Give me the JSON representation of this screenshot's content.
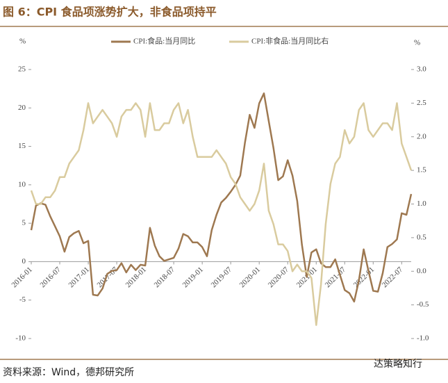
{
  "chart_data": {
    "type": "line",
    "title": "图 6：CPI 食品项涨势扩大，非食品项持平",
    "y_unit": "%",
    "y2_unit": "%",
    "source": "资料来源：Wind，德邦研究所",
    "watermark": "达策略知行",
    "grid": false,
    "legend": "top",
    "categories": [
      "2016-01",
      null,
      null,
      null,
      null,
      null,
      "2016-07",
      null,
      null,
      null,
      null,
      null,
      "2017-01",
      null,
      null,
      null,
      null,
      null,
      "2017-07",
      null,
      null,
      null,
      null,
      null,
      "2018-01",
      null,
      null,
      null,
      null,
      null,
      "2018-07",
      null,
      null,
      null,
      null,
      null,
      "2019-01",
      null,
      null,
      null,
      null,
      null,
      "2019-07",
      null,
      null,
      null,
      null,
      null,
      "2020-01",
      null,
      null,
      null,
      null,
      null,
      "2020-07",
      null,
      null,
      null,
      null,
      null,
      "2021-01",
      null,
      null,
      null,
      null,
      null,
      "2021-07",
      null,
      null,
      null,
      null,
      null,
      "2022-01",
      null,
      null,
      null,
      null,
      null,
      "2022-07",
      null,
      null
    ],
    "ylim": [
      -10,
      25
    ],
    "yticks": [
      -10,
      -5,
      0,
      5,
      10,
      15,
      20,
      25
    ],
    "y2lim": [
      -1,
      3
    ],
    "y2ticks": [
      {
        "value": -1,
        "label": "-1.0"
      },
      -0.5,
      {
        "value": 0,
        "label": "0.0"
      },
      0.5,
      {
        "value": 1,
        "label": "1.0"
      },
      1.5,
      {
        "value": 2,
        "label": "2.0"
      },
      2.5,
      {
        "value": 3,
        "label": "3.0"
      }
    ],
    "series": [
      {
        "name": "CPI:食品:当月同比",
        "color": "#9e7850",
        "values": [
          4.1,
          7.3,
          7.6,
          7.4,
          5.9,
          4.6,
          3.3,
          1.3,
          3.2,
          3.7,
          4.0,
          2.4,
          2.7,
          -4.3,
          -4.4,
          -3.5,
          -1.6,
          -1.2,
          -1.1,
          -0.2,
          -1.4,
          -0.4,
          -1.1,
          -0.4,
          -0.5,
          4.4,
          2.1,
          0.7,
          0.1,
          0.3,
          0.5,
          1.7,
          3.6,
          3.3,
          2.5,
          2.5,
          1.9,
          0.7,
          4.1,
          6.1,
          7.7,
          8.3,
          9.1,
          10.0,
          11.2,
          15.5,
          19.1,
          17.4,
          20.6,
          21.9,
          18.3,
          14.8,
          10.6,
          11.1,
          13.2,
          11.2,
          7.9,
          2.2,
          -2.0,
          1.2,
          1.6,
          -0.2,
          -0.7,
          -0.7,
          0.3,
          -1.7,
          -3.7,
          -4.1,
          -5.2,
          -2.4,
          1.6,
          -1.2,
          -3.8,
          -3.9,
          -1.5,
          1.9,
          2.3,
          2.9,
          6.3,
          6.1,
          8.8
        ]
      },
      {
        "name": "CPI:非食品:当月同比右",
        "color": "#d9cb9e",
        "axis": "y2",
        "values": [
          1.2,
          1.0,
          1.0,
          1.1,
          1.1,
          1.2,
          1.4,
          1.4,
          1.6,
          1.7,
          1.8,
          2.1,
          2.5,
          2.2,
          2.3,
          2.4,
          2.3,
          2.2,
          2.0,
          2.3,
          2.4,
          2.4,
          2.5,
          2.4,
          2.0,
          2.5,
          2.1,
          2.1,
          2.2,
          2.2,
          2.4,
          2.5,
          2.2,
          2.4,
          2.0,
          1.7,
          1.7,
          1.7,
          1.7,
          1.8,
          1.7,
          1.6,
          1.4,
          1.3,
          1.1,
          1.0,
          0.9,
          1.0,
          1.2,
          1.6,
          0.9,
          0.7,
          0.4,
          0.4,
          0.3,
          0.0,
          0.1,
          0.0,
          0.0,
          -0.1,
          -0.8,
          -0.2,
          0.7,
          1.3,
          1.6,
          1.7,
          2.1,
          1.9,
          2.0,
          2.4,
          2.5,
          2.1,
          2.0,
          2.1,
          2.2,
          2.2,
          2.1,
          2.5,
          1.9,
          1.7,
          1.5
        ]
      }
    ]
  }
}
